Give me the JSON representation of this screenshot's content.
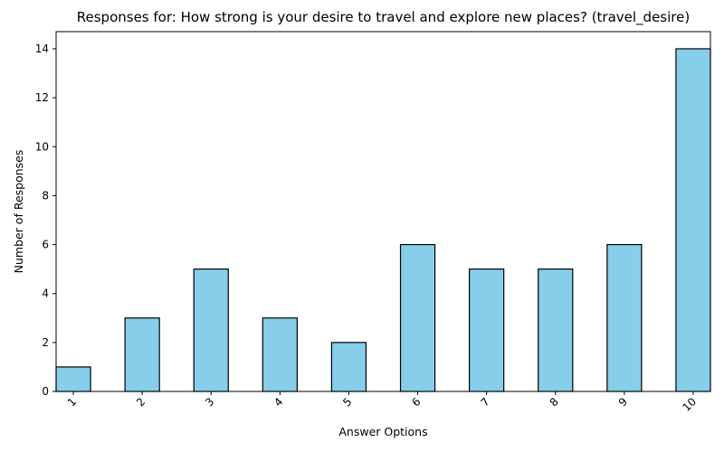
{
  "chart_data": {
    "type": "bar",
    "title": "Responses for: How strong is your desire to travel and explore new places? (travel_desire)",
    "xlabel": "Answer Options",
    "ylabel": "Number of Responses",
    "categories": [
      "1",
      "2",
      "3",
      "4",
      "5",
      "6",
      "7",
      "8",
      "9",
      "10"
    ],
    "values": [
      1,
      3,
      5,
      3,
      2,
      6,
      5,
      5,
      6,
      14
    ],
    "ylim": [
      0,
      14.7
    ],
    "yticks": [
      0,
      2,
      4,
      6,
      8,
      10,
      12,
      14
    ],
    "grid": false,
    "legend": "none",
    "colors": {
      "bar_fill": "#87ceeb",
      "bar_edge": "#000000"
    }
  }
}
